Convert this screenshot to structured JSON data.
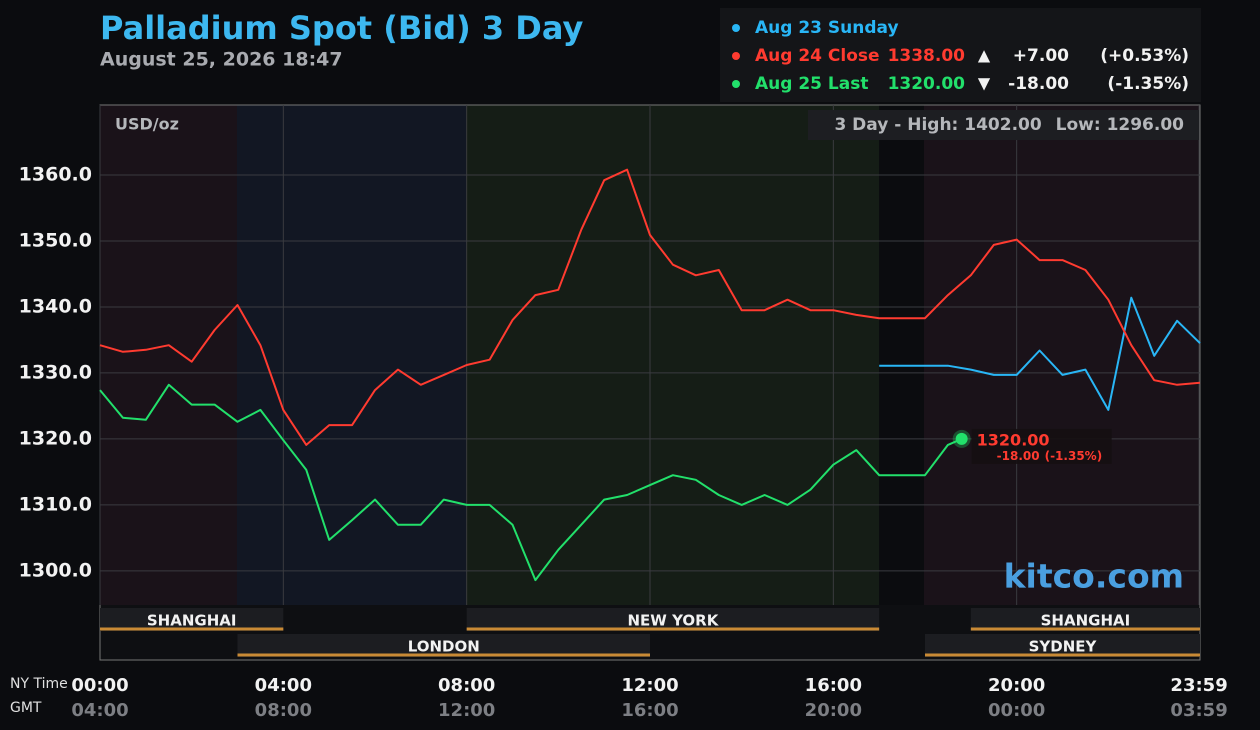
{
  "chart_data": {
    "type": "line",
    "title": "Palladium Spot (Bid) 3 Day",
    "subtitle": "August 25, 2026 18:47",
    "unit_label": "USD/oz",
    "watermark": "kitco.com",
    "range_box": {
      "high_label": "3 Day - High:",
      "high": {
        "value": 1402,
        "label": "1402.00"
      },
      "low_label": "Low:",
      "low": {
        "value": 1296,
        "label": "1296.00"
      }
    },
    "x_row_labels": [
      "NY Time",
      "GMT"
    ],
    "xlim": [
      0,
      24
    ],
    "xticks": [
      {
        "value": 0,
        "label": "00:00"
      },
      {
        "value": 4,
        "label": "04:00"
      },
      {
        "value": 8,
        "label": "08:00"
      },
      {
        "value": 12,
        "label": "12:00"
      },
      {
        "value": 16,
        "label": "16:00"
      },
      {
        "value": 20,
        "label": "20:00"
      },
      {
        "value": 23.98,
        "label": "23:59"
      }
    ],
    "gmt_labels": [
      "04:00",
      "08:00",
      "12:00",
      "16:00",
      "20:00",
      "00:00",
      "03:59"
    ],
    "ylim": [
      1286.5,
      1370.6
    ],
    "yticks": [
      {
        "value": 1300,
        "label": "1300.0"
      },
      {
        "value": 1310,
        "label": "1310.0"
      },
      {
        "value": 1320,
        "label": "1320.0"
      },
      {
        "value": 1330,
        "label": "1330.0"
      },
      {
        "value": 1340,
        "label": "1340.0"
      },
      {
        "value": 1350,
        "label": "1350.0"
      },
      {
        "value": 1360,
        "label": "1360.0"
      }
    ],
    "grid": true,
    "sessions": [
      {
        "name": "SHANGHAI",
        "start": 0,
        "end": 4
      },
      {
        "name": "NEW YORK",
        "start": 8,
        "end": 17
      },
      {
        "name": "SHANGHAI",
        "start": 19,
        "end": 24
      },
      {
        "name": "LONDON",
        "start": 3,
        "end": 12
      },
      {
        "name": "SYDNEY",
        "start": 18,
        "end": 24
      }
    ],
    "series": [
      {
        "name": "Aug 23 Sunday",
        "color": "#29b6f6",
        "x": [
          17,
          17.5,
          18,
          18.5,
          19,
          19.5,
          20,
          20.5,
          21,
          21.5,
          22,
          22.5,
          23,
          23.5,
          24
        ],
        "values": [
          1331.1,
          1331.1,
          1331.1,
          1331.1,
          1330.5,
          1329.7,
          1329.7,
          1333.4,
          1329.7,
          1330.5,
          1324.4,
          1341.4,
          1332.6,
          1337.9,
          1334.5
        ]
      },
      {
        "name": "Aug 24 Close",
        "color": "#ff3b30",
        "legend_value": {
          "value": 1338,
          "label": "1338.00"
        },
        "arrow": "▲",
        "change": {
          "value": 7,
          "label": "+7.00"
        },
        "change_pct": {
          "value": 0.53,
          "label": "(+0.53%)"
        },
        "x": [
          0,
          0.5,
          1,
          1.5,
          2,
          2.5,
          3,
          3.5,
          4,
          4.5,
          5,
          5.5,
          6,
          6.5,
          7,
          7.5,
          8,
          8.5,
          9,
          9.5,
          10,
          10.5,
          11,
          11.5,
          12,
          12.5,
          13,
          13.5,
          14,
          14.5,
          15,
          15.5,
          16,
          16.5,
          17,
          17.5,
          18,
          18.5,
          19,
          19.5,
          20,
          20.5,
          21,
          21.5,
          22,
          22.5,
          23,
          23.5,
          24
        ],
        "values": [
          1334.2,
          1333.2,
          1333.5,
          1334.2,
          1331.7,
          1336.5,
          1340.3,
          1334.2,
          1324.4,
          1319.1,
          1322.1,
          1322.1,
          1327.4,
          1330.5,
          1328.2,
          1329.7,
          1331.2,
          1332.0,
          1338.0,
          1341.8,
          1342.6,
          1351.7,
          1359.2,
          1360.8,
          1350.9,
          1346.4,
          1344.8,
          1345.6,
          1339.5,
          1339.5,
          1341.1,
          1339.5,
          1339.5,
          1338.8,
          1338.3,
          1338.3,
          1338.3,
          1341.8,
          1344.8,
          1349.4,
          1350.2,
          1347.1,
          1347.1,
          1345.6,
          1341.1,
          1334.2,
          1328.9,
          1328.2,
          1328.5
        ]
      },
      {
        "name": "Aug 25 Last",
        "color": "#22e06b",
        "legend_value": {
          "value": 1320,
          "label": "1320.00"
        },
        "arrow": "▼",
        "change": {
          "value": -18,
          "label": "-18.00"
        },
        "change_pct": {
          "value": -1.35,
          "label": "(-1.35%)"
        },
        "x": [
          0,
          0.5,
          1,
          1.5,
          2,
          2.5,
          3,
          3.5,
          4,
          4.5,
          5,
          5.5,
          6,
          6.5,
          7,
          7.5,
          8,
          8.5,
          9,
          9.5,
          10,
          10.5,
          11,
          11.5,
          12,
          12.5,
          13,
          13.5,
          14,
          14.5,
          15,
          15.5,
          16,
          16.5,
          17,
          17.5,
          18,
          18.5,
          18.8
        ],
        "values": [
          1327.4,
          1323.2,
          1322.9,
          1328.2,
          1325.2,
          1325.2,
          1322.6,
          1324.4,
          1319.8,
          1315.3,
          1304.7,
          1307.7,
          1310.8,
          1307.0,
          1307.0,
          1310.8,
          1310.0,
          1310.0,
          1307.0,
          1298.6,
          1303.2,
          1307.0,
          1310.8,
          1311.5,
          1313.0,
          1314.5,
          1313.8,
          1311.5,
          1310.0,
          1311.5,
          1310.0,
          1312.3,
          1316.1,
          1318.3,
          1314.5,
          1314.5,
          1314.5,
          1319.1,
          1320.0
        ]
      }
    ]
  }
}
